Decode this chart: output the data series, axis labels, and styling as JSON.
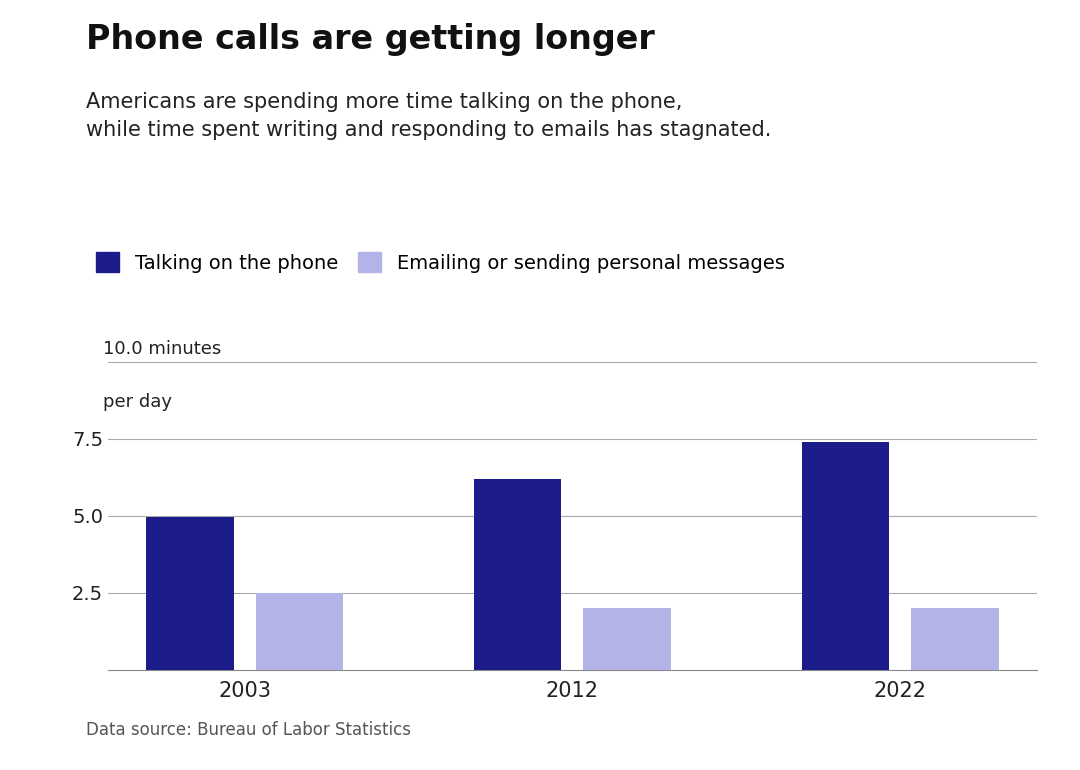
{
  "title": "Phone calls are getting longer",
  "subtitle": "Americans are spending more time talking on the phone,\nwhile time spent writing and responding to emails has stagnated.",
  "years": [
    "2003",
    "2012",
    "2022"
  ],
  "phone_values": [
    4.95,
    6.2,
    7.4
  ],
  "email_values": [
    2.5,
    2.0,
    2.0
  ],
  "phone_color": "#1c1c8a",
  "email_color": "#b3b3e8",
  "ylim": [
    0,
    10.5
  ],
  "yticks": [
    2.5,
    5.0,
    7.5,
    10.0
  ],
  "ytick_labels": [
    "2.5",
    "5.0",
    "7.5",
    "10.0"
  ],
  "legend_phone": "Talking on the phone",
  "legend_email": "Emailing or sending personal messages",
  "source": "Data source: Bureau of Labor Statistics",
  "bg_color": "#ffffff",
  "bar_width": 0.32,
  "bar_spacing": 0.08
}
